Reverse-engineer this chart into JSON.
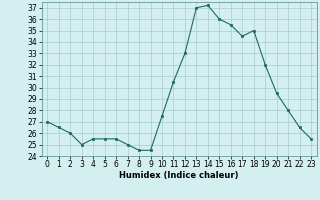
{
  "x": [
    0,
    1,
    2,
    3,
    4,
    5,
    6,
    7,
    8,
    9,
    10,
    11,
    12,
    13,
    14,
    15,
    16,
    17,
    18,
    19,
    20,
    21,
    22,
    23
  ],
  "y": [
    27.0,
    26.5,
    26.0,
    25.0,
    25.5,
    25.5,
    25.5,
    25.0,
    24.5,
    24.5,
    27.5,
    30.5,
    33.0,
    37.0,
    37.2,
    36.0,
    35.5,
    34.5,
    35.0,
    32.0,
    29.5,
    28.0,
    26.5,
    25.5
  ],
  "xlabel": "Humidex (Indice chaleur)",
  "ylim": [
    24,
    37.5
  ],
  "xlim": [
    -0.5,
    23.5
  ],
  "yticks": [
    24,
    25,
    26,
    27,
    28,
    29,
    30,
    31,
    32,
    33,
    34,
    35,
    36,
    37
  ],
  "xticks": [
    0,
    1,
    2,
    3,
    4,
    5,
    6,
    7,
    8,
    9,
    10,
    11,
    12,
    13,
    14,
    15,
    16,
    17,
    18,
    19,
    20,
    21,
    22,
    23
  ],
  "line_color": "#1a6b5a",
  "marker_color": "#1a6b5a",
  "bg_color": "#d4efef",
  "grid_color": "#a8cccc",
  "xlabel_fontsize": 6.0,
  "tick_fontsize": 5.5
}
